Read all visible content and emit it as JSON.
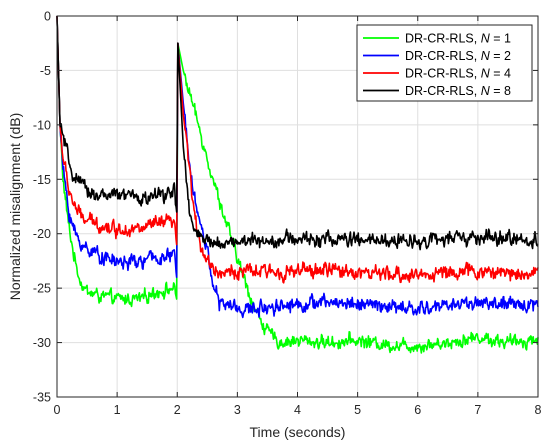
{
  "chart_data": {
    "type": "line",
    "title": "",
    "xlabel": "Time (seconds)",
    "ylabel": "Normalized misalignment (dB)",
    "xlim": [
      0,
      8
    ],
    "ylim": [
      -35,
      0
    ],
    "xticks": [
      0,
      1,
      2,
      3,
      4,
      5,
      6,
      7,
      8
    ],
    "yticks": [
      0,
      -5,
      -10,
      -15,
      -20,
      -25,
      -30,
      -35
    ],
    "grid": true,
    "legend_position": "top-right",
    "series": [
      {
        "legend_prefix": "DR-CR-RLS, ",
        "legend_var": "N",
        "legend_value": " = 1",
        "color": "#00ff00",
        "points": [
          [
            0,
            0
          ],
          [
            0.05,
            -10
          ],
          [
            0.1,
            -15
          ],
          [
            0.2,
            -19.5
          ],
          [
            0.3,
            -22.5
          ],
          [
            0.4,
            -24.5
          ],
          [
            0.5,
            -25.3
          ],
          [
            0.7,
            -25.7
          ],
          [
            1.0,
            -26
          ],
          [
            1.2,
            -26
          ],
          [
            1.4,
            -26
          ],
          [
            1.6,
            -25.4
          ],
          [
            1.8,
            -25.2
          ],
          [
            1.95,
            -25
          ],
          [
            1.99,
            -26
          ],
          [
            2.01,
            -2.5
          ],
          [
            2.1,
            -5
          ],
          [
            2.3,
            -9
          ],
          [
            2.5,
            -13
          ],
          [
            2.7,
            -17
          ],
          [
            2.9,
            -20.5
          ],
          [
            3.1,
            -24
          ],
          [
            3.3,
            -27
          ],
          [
            3.5,
            -29
          ],
          [
            3.7,
            -30
          ],
          [
            4.0,
            -29.8
          ],
          [
            4.5,
            -30
          ],
          [
            5.0,
            -29.8
          ],
          [
            5.5,
            -30.2
          ],
          [
            6.0,
            -30.3
          ],
          [
            6.5,
            -30
          ],
          [
            7.0,
            -29.5
          ],
          [
            7.5,
            -30
          ],
          [
            8.0,
            -29.7
          ]
        ]
      },
      {
        "legend_prefix": "DR-CR-RLS, ",
        "legend_var": "N",
        "legend_value": " = 2",
        "color": "#0000ff",
        "points": [
          [
            0,
            0
          ],
          [
            0.05,
            -10
          ],
          [
            0.1,
            -14
          ],
          [
            0.2,
            -18
          ],
          [
            0.3,
            -20
          ],
          [
            0.4,
            -21
          ],
          [
            0.6,
            -21.6
          ],
          [
            0.8,
            -22.2
          ],
          [
            1.0,
            -22.6
          ],
          [
            1.2,
            -22.6
          ],
          [
            1.4,
            -22.6
          ],
          [
            1.6,
            -22.2
          ],
          [
            1.8,
            -22.2
          ],
          [
            1.95,
            -22
          ],
          [
            1.99,
            -24
          ],
          [
            2.01,
            -2.5
          ],
          [
            2.1,
            -8
          ],
          [
            2.2,
            -13
          ],
          [
            2.3,
            -17
          ],
          [
            2.4,
            -19.5
          ],
          [
            2.5,
            -21.5
          ],
          [
            2.6,
            -24.5
          ],
          [
            2.7,
            -26.5
          ],
          [
            2.9,
            -26.6
          ],
          [
            3.1,
            -27
          ],
          [
            3.3,
            -26.9
          ],
          [
            3.6,
            -26.6
          ],
          [
            4.0,
            -26.5
          ],
          [
            4.5,
            -26.3
          ],
          [
            5.0,
            -26.4
          ],
          [
            5.5,
            -26.7
          ],
          [
            6.0,
            -27
          ],
          [
            6.5,
            -26.5
          ],
          [
            7.0,
            -26.3
          ],
          [
            7.5,
            -26.6
          ],
          [
            8.0,
            -26.4
          ]
        ]
      },
      {
        "legend_prefix": "DR-CR-RLS, ",
        "legend_var": "N",
        "legend_value": " = 4",
        "color": "#ff0000",
        "points": [
          [
            0,
            0
          ],
          [
            0.05,
            -10
          ],
          [
            0.1,
            -13
          ],
          [
            0.2,
            -16
          ],
          [
            0.3,
            -17.5
          ],
          [
            0.4,
            -18.5
          ],
          [
            0.6,
            -19
          ],
          [
            0.8,
            -19.3
          ],
          [
            1.0,
            -19.6
          ],
          [
            1.2,
            -19.5
          ],
          [
            1.4,
            -19.6
          ],
          [
            1.6,
            -19.2
          ],
          [
            1.8,
            -19
          ],
          [
            1.95,
            -19
          ],
          [
            1.99,
            -21
          ],
          [
            2.01,
            -2.5
          ],
          [
            2.1,
            -9
          ],
          [
            2.2,
            -14
          ],
          [
            2.3,
            -19
          ],
          [
            2.4,
            -21
          ],
          [
            2.5,
            -22.5
          ],
          [
            2.7,
            -23.6
          ],
          [
            3.0,
            -23.5
          ],
          [
            3.5,
            -23.5
          ],
          [
            4.0,
            -23.5
          ],
          [
            4.5,
            -23.3
          ],
          [
            5.0,
            -23.5
          ],
          [
            5.5,
            -23.8
          ],
          [
            6.0,
            -23.8
          ],
          [
            6.5,
            -23.5
          ],
          [
            7.0,
            -23.5
          ],
          [
            7.5,
            -23.6
          ],
          [
            8.0,
            -23.6
          ]
        ]
      },
      {
        "legend_prefix": "DR-CR-RLS, ",
        "legend_var": "N",
        "legend_value": " = 8",
        "color": "#000000",
        "points": [
          [
            0,
            0
          ],
          [
            0.05,
            -10
          ],
          [
            0.1,
            -11
          ],
          [
            0.2,
            -13.5
          ],
          [
            0.3,
            -15
          ],
          [
            0.5,
            -16
          ],
          [
            0.7,
            -16.5
          ],
          [
            1.0,
            -16.5
          ],
          [
            1.2,
            -16.5
          ],
          [
            1.4,
            -16.8
          ],
          [
            1.6,
            -16.6
          ],
          [
            1.8,
            -16.3
          ],
          [
            1.95,
            -16
          ],
          [
            1.99,
            -18
          ],
          [
            2.01,
            -2.5
          ],
          [
            2.1,
            -12
          ],
          [
            2.2,
            -18
          ],
          [
            2.3,
            -20
          ],
          [
            2.5,
            -20.8
          ],
          [
            2.8,
            -20.8
          ],
          [
            3.0,
            -20.7
          ],
          [
            3.5,
            -20.6
          ],
          [
            4.0,
            -20.5
          ],
          [
            4.5,
            -20.5
          ],
          [
            5.0,
            -20.6
          ],
          [
            5.5,
            -20.7
          ],
          [
            6.0,
            -20.6
          ],
          [
            6.5,
            -20.5
          ],
          [
            7.0,
            -20.4
          ],
          [
            7.5,
            -20.5
          ],
          [
            8.0,
            -20.6
          ]
        ]
      }
    ]
  }
}
